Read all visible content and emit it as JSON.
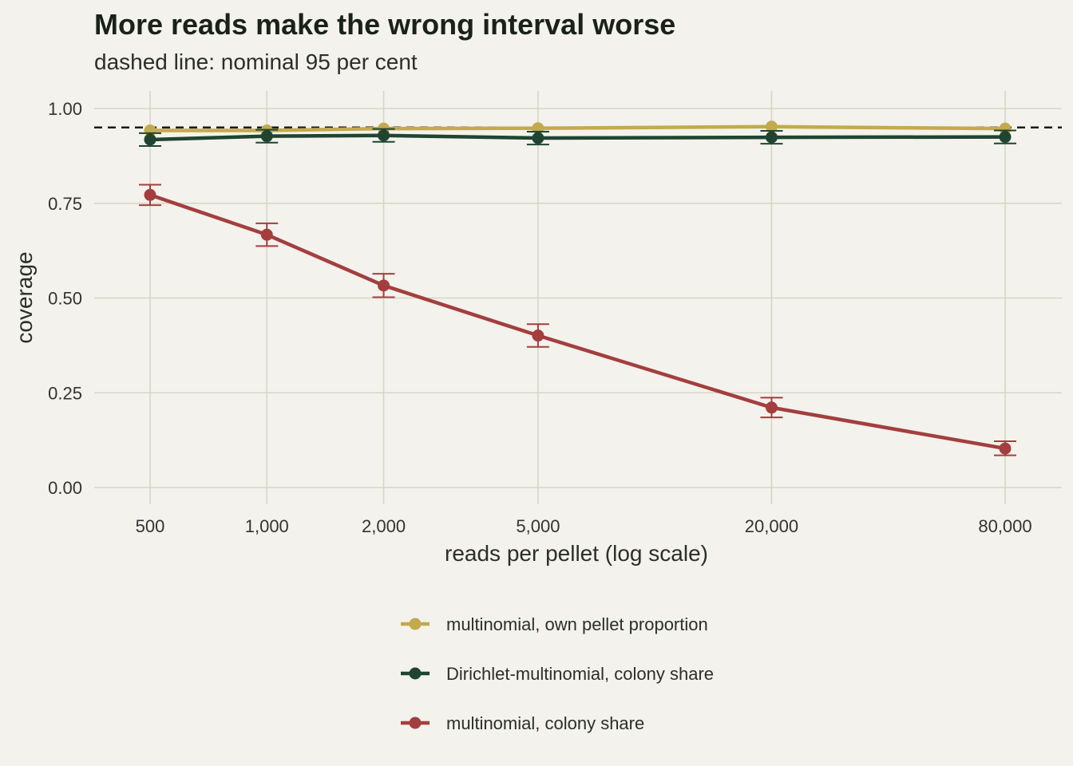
{
  "chart_data": {
    "type": "line",
    "title": "More reads make the wrong interval worse",
    "subtitle": "dashed line: nominal 95 per cent",
    "xlabel": "reads per pellet (log scale)",
    "ylabel": "coverage",
    "x_scale": "log",
    "x": [
      500,
      1000,
      2000,
      5000,
      20000,
      80000
    ],
    "x_tick_labels": [
      "500",
      "1,000",
      "2,000",
      "5,000",
      "20,000",
      "80,000"
    ],
    "ylim": [
      0,
      1
    ],
    "y_ticks": [
      0,
      0.25,
      0.5,
      0.75,
      1.0
    ],
    "y_tick_labels": [
      "0.00",
      "0.25",
      "0.50",
      "0.75",
      "1.00"
    ],
    "reference_line": 0.95,
    "grid": true,
    "legend_position": "bottom",
    "series": [
      {
        "name": "multinomial, own pellet proportion",
        "color": "#c4aa4e",
        "values": [
          0.942,
          0.942,
          0.947,
          0.948,
          0.952,
          0.947
        ],
        "error_bars": false
      },
      {
        "name": "Dirichlet-multinomial, colony share",
        "color": "#1f4530",
        "values": [
          0.918,
          0.927,
          0.929,
          0.922,
          0.924,
          0.925
        ],
        "lower": [
          0.901,
          0.91,
          0.912,
          0.905,
          0.907,
          0.908
        ],
        "upper": [
          0.935,
          0.944,
          0.946,
          0.939,
          0.941,
          0.942
        ],
        "error_bars": true
      },
      {
        "name": "multinomial, colony share",
        "color": "#a43e3e",
        "values": [
          0.772,
          0.667,
          0.533,
          0.401,
          0.211,
          0.103
        ],
        "lower": [
          0.745,
          0.637,
          0.502,
          0.371,
          0.185,
          0.085
        ],
        "upper": [
          0.799,
          0.697,
          0.564,
          0.431,
          0.237,
          0.122
        ],
        "error_bars": true
      }
    ]
  }
}
